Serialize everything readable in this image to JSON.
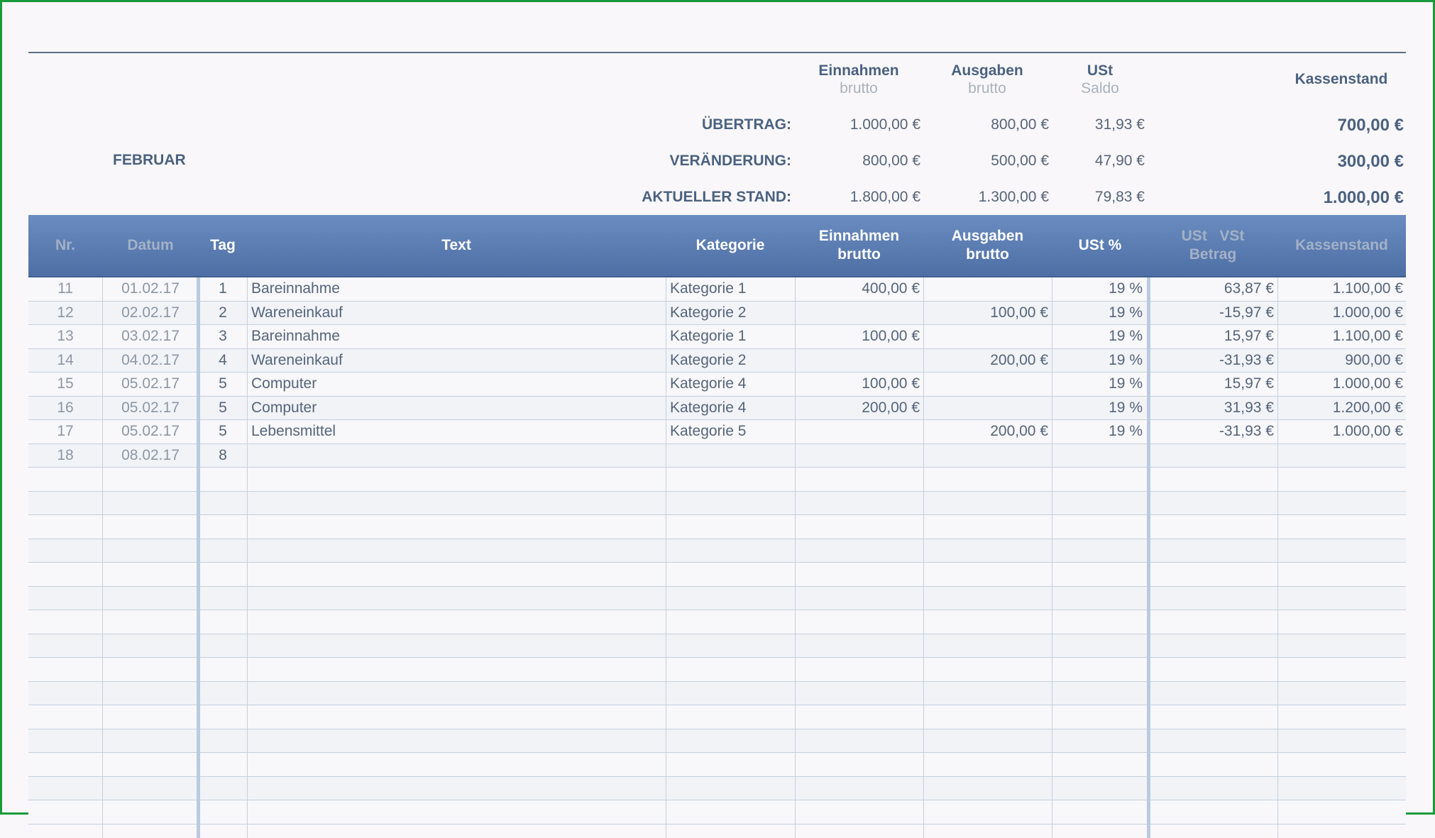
{
  "summary": {
    "month": "FEBRUAR",
    "col_titles": {
      "einnahmen": "Einnahmen",
      "einnahmen_sub": "brutto",
      "ausgaben": "Ausgaben",
      "ausgaben_sub": "brutto",
      "ust": "USt",
      "ust_sub": "Saldo",
      "kassenstand": "Kassenstand"
    },
    "rows": [
      {
        "label": "ÜBERTRAG:",
        "einnahmen": "1.000,00 €",
        "ausgaben": "800,00 €",
        "ust": "31,93 €",
        "kassenstand": "700,00 €"
      },
      {
        "label": "VERÄNDERUNG:",
        "einnahmen": "800,00 €",
        "ausgaben": "500,00 €",
        "ust": "47,90 €",
        "kassenstand": "300,00 €"
      },
      {
        "label": "AKTUELLER STAND:",
        "einnahmen": "1.800,00 €",
        "ausgaben": "1.300,00 €",
        "ust": "79,83 €",
        "kassenstand": "1.000,00 €"
      }
    ]
  },
  "table": {
    "headers": {
      "nr": "Nr.",
      "datum": "Datum",
      "tag": "Tag",
      "text": "Text",
      "kategorie": "Kategorie",
      "einnahmen_1": "Einnahmen",
      "einnahmen_2": "brutto",
      "ausgaben_1": "Ausgaben",
      "ausgaben_2": "brutto",
      "ust_pct": "USt %",
      "ust_betrag_1a": "USt",
      "ust_betrag_1b": "VSt",
      "ust_betrag_2": "Betrag",
      "kassenstand": "Kassenstand"
    },
    "rows": [
      {
        "nr": "11",
        "datum": "01.02.17",
        "tag": "1",
        "text": "Bareinnahme",
        "kategorie": "Kategorie 1",
        "einnahmen": "400,00 €",
        "ausgaben": "",
        "ust": "19 %",
        "betrag": "63,87 €",
        "kassenstand": "1.100,00 €"
      },
      {
        "nr": "12",
        "datum": "02.02.17",
        "tag": "2",
        "text": "Wareneinkauf",
        "kategorie": "Kategorie 2",
        "einnahmen": "",
        "ausgaben": "100,00 €",
        "ust": "19 %",
        "betrag": "-15,97 €",
        "kassenstand": "1.000,00 €"
      },
      {
        "nr": "13",
        "datum": "03.02.17",
        "tag": "3",
        "text": "Bareinnahme",
        "kategorie": "Kategorie 1",
        "einnahmen": "100,00 €",
        "ausgaben": "",
        "ust": "19 %",
        "betrag": "15,97 €",
        "kassenstand": "1.100,00 €"
      },
      {
        "nr": "14",
        "datum": "04.02.17",
        "tag": "4",
        "text": "Wareneinkauf",
        "kategorie": "Kategorie 2",
        "einnahmen": "",
        "ausgaben": "200,00 €",
        "ust": "19 %",
        "betrag": "-31,93 €",
        "kassenstand": "900,00 €"
      },
      {
        "nr": "15",
        "datum": "05.02.17",
        "tag": "5",
        "text": "Computer",
        "kategorie": "Kategorie 4",
        "einnahmen": "100,00 €",
        "ausgaben": "",
        "ust": "19 %",
        "betrag": "15,97 €",
        "kassenstand": "1.000,00 €"
      },
      {
        "nr": "16",
        "datum": "05.02.17",
        "tag": "5",
        "text": "Computer",
        "kategorie": "Kategorie 4",
        "einnahmen": "200,00 €",
        "ausgaben": "",
        "ust": "19 %",
        "betrag": "31,93 €",
        "kassenstand": "1.200,00 €"
      },
      {
        "nr": "17",
        "datum": "05.02.17",
        "tag": "5",
        "text": "Lebensmittel",
        "kategorie": "Kategorie 5",
        "einnahmen": "",
        "ausgaben": "200,00 €",
        "ust": "19 %",
        "betrag": "-31,93 €",
        "kassenstand": "1.000,00 €"
      },
      {
        "nr": "18",
        "datum": "08.02.17",
        "tag": "8",
        "text": "",
        "kategorie": "",
        "einnahmen": "",
        "ausgaben": "",
        "ust": "",
        "betrag": "",
        "kassenstand": ""
      },
      {
        "nr": "",
        "datum": "",
        "tag": "",
        "text": "",
        "kategorie": "",
        "einnahmen": "",
        "ausgaben": "",
        "ust": "",
        "betrag": "",
        "kassenstand": ""
      },
      {
        "nr": "",
        "datum": "",
        "tag": "",
        "text": "",
        "kategorie": "",
        "einnahmen": "",
        "ausgaben": "",
        "ust": "",
        "betrag": "",
        "kassenstand": ""
      },
      {
        "nr": "",
        "datum": "",
        "tag": "",
        "text": "",
        "kategorie": "",
        "einnahmen": "",
        "ausgaben": "",
        "ust": "",
        "betrag": "",
        "kassenstand": ""
      },
      {
        "nr": "",
        "datum": "",
        "tag": "",
        "text": "",
        "kategorie": "",
        "einnahmen": "",
        "ausgaben": "",
        "ust": "",
        "betrag": "",
        "kassenstand": ""
      },
      {
        "nr": "",
        "datum": "",
        "tag": "",
        "text": "",
        "kategorie": "",
        "einnahmen": "",
        "ausgaben": "",
        "ust": "",
        "betrag": "",
        "kassenstand": ""
      },
      {
        "nr": "",
        "datum": "",
        "tag": "",
        "text": "",
        "kategorie": "",
        "einnahmen": "",
        "ausgaben": "",
        "ust": "",
        "betrag": "",
        "kassenstand": ""
      },
      {
        "nr": "",
        "datum": "",
        "tag": "",
        "text": "",
        "kategorie": "",
        "einnahmen": "",
        "ausgaben": "",
        "ust": "",
        "betrag": "",
        "kassenstand": ""
      },
      {
        "nr": "",
        "datum": "",
        "tag": "",
        "text": "",
        "kategorie": "",
        "einnahmen": "",
        "ausgaben": "",
        "ust": "",
        "betrag": "",
        "kassenstand": ""
      },
      {
        "nr": "",
        "datum": "",
        "tag": "",
        "text": "",
        "kategorie": "",
        "einnahmen": "",
        "ausgaben": "",
        "ust": "",
        "betrag": "",
        "kassenstand": ""
      },
      {
        "nr": "",
        "datum": "",
        "tag": "",
        "text": "",
        "kategorie": "",
        "einnahmen": "",
        "ausgaben": "",
        "ust": "",
        "betrag": "",
        "kassenstand": ""
      },
      {
        "nr": "",
        "datum": "",
        "tag": "",
        "text": "",
        "kategorie": "",
        "einnahmen": "",
        "ausgaben": "",
        "ust": "",
        "betrag": "",
        "kassenstand": ""
      },
      {
        "nr": "",
        "datum": "",
        "tag": "",
        "text": "",
        "kategorie": "",
        "einnahmen": "",
        "ausgaben": "",
        "ust": "",
        "betrag": "",
        "kassenstand": ""
      },
      {
        "nr": "",
        "datum": "",
        "tag": "",
        "text": "",
        "kategorie": "",
        "einnahmen": "",
        "ausgaben": "",
        "ust": "",
        "betrag": "",
        "kassenstand": ""
      },
      {
        "nr": "",
        "datum": "",
        "tag": "",
        "text": "",
        "kategorie": "",
        "einnahmen": "",
        "ausgaben": "",
        "ust": "",
        "betrag": "",
        "kassenstand": ""
      },
      {
        "nr": "",
        "datum": "",
        "tag": "",
        "text": "",
        "kategorie": "",
        "einnahmen": "",
        "ausgaben": "",
        "ust": "",
        "betrag": "",
        "kassenstand": ""
      }
    ]
  },
  "colors": {
    "header_top": "#6a8cc0",
    "header_bottom": "#4e6fa5",
    "label_text": "#4a6280",
    "frame_border": "#1a9a3a"
  }
}
